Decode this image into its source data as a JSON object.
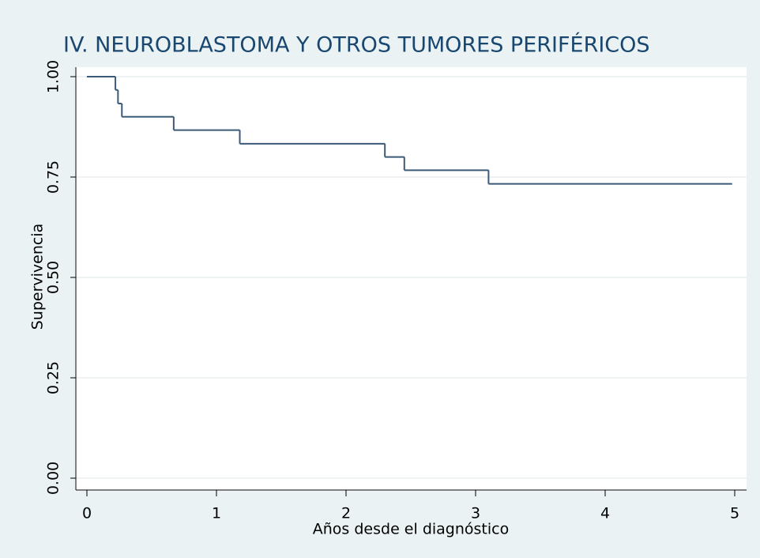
{
  "chart_data": {
    "type": "line",
    "step": true,
    "title": "IV. NEUROBLASTOMA Y OTROS TUMORES PERIFÉRICOS",
    "xlabel": "Años desde el diagnóstico",
    "ylabel": "Supervivencia",
    "x": [
      0,
      0.22,
      0.24,
      0.27,
      0.67,
      1.18,
      2.3,
      2.45,
      3.1,
      4.98
    ],
    "values": [
      1,
      0.967,
      0.933,
      0.9,
      0.867,
      0.833,
      0.8,
      0.767,
      0.733,
      0.733
    ],
    "color": "#3b5a78",
    "xlim": [
      0,
      5
    ],
    "xticks": [
      0,
      1,
      2,
      3,
      4,
      5
    ],
    "ylim": [
      0,
      1
    ],
    "yticks": [
      {
        "value": 0,
        "label": "0.00"
      },
      {
        "value": 0.25,
        "label": "0.25"
      },
      {
        "value": 0.5,
        "label": "0.50"
      },
      {
        "value": 0.75,
        "label": "0.75"
      },
      {
        "value": 1,
        "label": "1.00"
      }
    ],
    "grid": true
  }
}
